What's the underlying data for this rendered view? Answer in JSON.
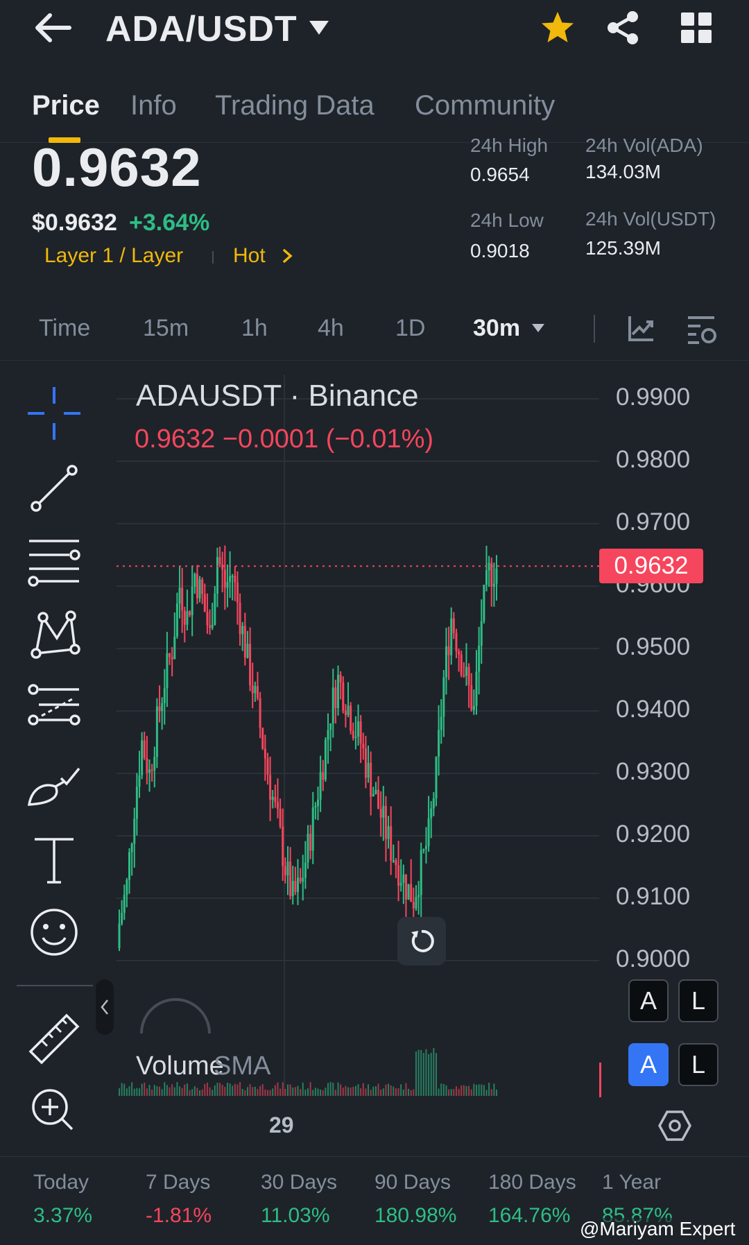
{
  "header": {
    "pair": "ADA/USDT",
    "icons": {
      "back": "back-arrow-icon",
      "star": "star-icon",
      "share": "share-icon",
      "grid": "grid-icon"
    },
    "star_color": "#f0b90b"
  },
  "tabs": [
    {
      "label": "Price",
      "active": true
    },
    {
      "label": "Info",
      "active": false
    },
    {
      "label": "Trading Data",
      "active": false
    },
    {
      "label": "Community",
      "active": false
    }
  ],
  "ticker": {
    "last_price": "0.9632",
    "usd_price": "$0.9632",
    "change_pct": "+3.64%",
    "tags": [
      "Layer 1 / Layer",
      "Hot"
    ],
    "stats": [
      {
        "label": "24h High",
        "value": "0.9654"
      },
      {
        "label": "24h Vol(ADA)",
        "value": "134.03M"
      },
      {
        "label": "24h Low",
        "value": "0.9018"
      },
      {
        "label": "24h Vol(USDT)",
        "value": "125.39M"
      }
    ]
  },
  "timeframes": {
    "items": [
      "Time",
      "15m",
      "1h",
      "4h",
      "1D"
    ],
    "selected": "30m",
    "icons": [
      "indicator-icon",
      "chart-settings-icon"
    ]
  },
  "toolbar": {
    "tools": [
      "crosshair-icon",
      "trend-line-icon",
      "horizontal-lines-icon",
      "pattern-icon",
      "fib-channel-icon",
      "brush-icon",
      "text-tool-icon",
      "emoji-icon",
      "ruler-icon",
      "zoom-in-icon"
    ]
  },
  "chart": {
    "title": "ADAUSDT · Binance",
    "quote": "0.9632  −0.0001 (−0.01%)",
    "price_tag": "0.9632",
    "scale_buttons": [
      {
        "label": "A",
        "active": false
      },
      {
        "label": "L",
        "active": false
      },
      {
        "label": "A",
        "active": true
      },
      {
        "label": "L",
        "active": false
      }
    ],
    "volume_label": "Volume",
    "volume_sma": "SMA",
    "up_color": "#2ebd85",
    "down_color": "#f6465d"
  },
  "chart_data": {
    "type": "candlestick",
    "title": "ADAUSDT · Binance",
    "x_tick_labels": [
      "29"
    ],
    "y_tick_labels": [
      "0.9900",
      "0.9800",
      "0.9700",
      "0.9600",
      "0.9500",
      "0.9400",
      "0.9300",
      "0.9200",
      "0.9100",
      "0.9000"
    ],
    "ylim": [
      0.9,
      0.99
    ],
    "last_price": 0.9632,
    "series": [
      {
        "name": "ADAUSDT",
        "close_approx": [
          0.906,
          0.912,
          0.925,
          0.935,
          0.93,
          0.938,
          0.945,
          0.95,
          0.96,
          0.955,
          0.962,
          0.958,
          0.952,
          0.965,
          0.96,
          0.962,
          0.955,
          0.948,
          0.942,
          0.935,
          0.928,
          0.922,
          0.915,
          0.91,
          0.912,
          0.918,
          0.925,
          0.932,
          0.94,
          0.945,
          0.942,
          0.938,
          0.935,
          0.93,
          0.926,
          0.922,
          0.918,
          0.915,
          0.912,
          0.91,
          0.915,
          0.92,
          0.93,
          0.945,
          0.955,
          0.95,
          0.945,
          0.94,
          0.955,
          0.962,
          0.963
        ]
      }
    ],
    "grid": true
  },
  "performance": [
    {
      "label": "Today",
      "value": "3.37%",
      "dir": "up"
    },
    {
      "label": "7 Days",
      "value": "-1.81%",
      "dir": "down"
    },
    {
      "label": "30 Days",
      "value": "11.03%",
      "dir": "up"
    },
    {
      "label": "90 Days",
      "value": "180.98%",
      "dir": "up"
    },
    {
      "label": "180 Days",
      "value": "164.76%",
      "dir": "up"
    },
    {
      "label": "1 Year",
      "value": "85.87%",
      "dir": "up"
    }
  ],
  "watermark": "@Mariyam Expert"
}
